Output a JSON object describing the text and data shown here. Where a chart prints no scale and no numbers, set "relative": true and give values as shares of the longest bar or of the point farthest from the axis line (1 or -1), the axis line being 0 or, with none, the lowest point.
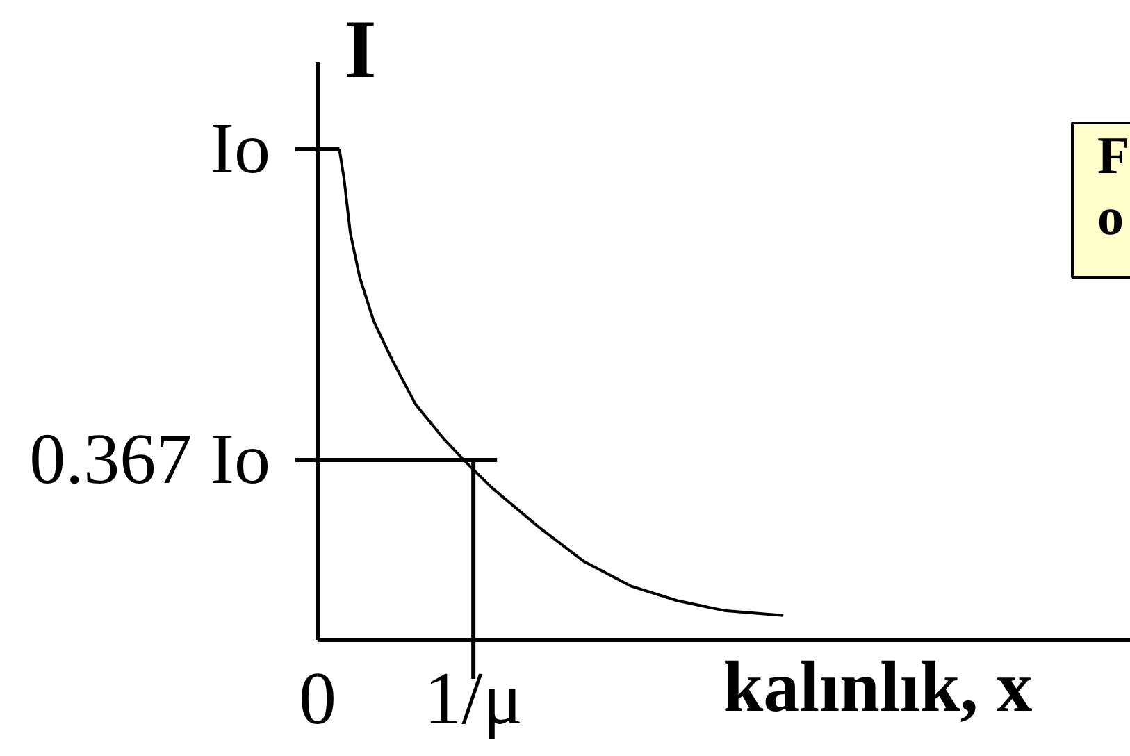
{
  "chart_data": {
    "type": "line",
    "xlabel": "kalınlık, x",
    "ylabel": "I",
    "relative": true,
    "x": [
      0.14,
      0.17,
      0.21,
      0.27,
      0.36,
      0.48,
      0.63,
      0.81,
      0.96,
      1.12,
      1.42,
      1.71,
      2.01,
      2.31,
      2.61,
      2.99
    ],
    "series": [
      {
        "color": "#000000",
        "values": [
          1.0,
          0.94,
          0.83,
          0.74,
          0.65,
          0.57,
          0.48,
          0.41,
          0.36,
          0.31,
          0.23,
          0.16,
          0.11,
          0.08,
          0.06,
          0.05
        ]
      }
    ],
    "xlim": [
      0,
      5.22
    ],
    "xticks": [
      0,
      {
        "value": 1,
        "label": "1/μ"
      }
    ],
    "ref_lines": [
      {
        "axis": "y",
        "value": 1,
        "label": "Io",
        "color": "#000000"
      },
      {
        "axis": "y",
        "value": 0.367,
        "label": "0.367 Io",
        "color": "#000000"
      },
      {
        "axis": "x",
        "value": 1,
        "color": "#000000"
      }
    ],
    "annotations": [
      "F\no"
    ],
    "line_style": "solid"
  }
}
